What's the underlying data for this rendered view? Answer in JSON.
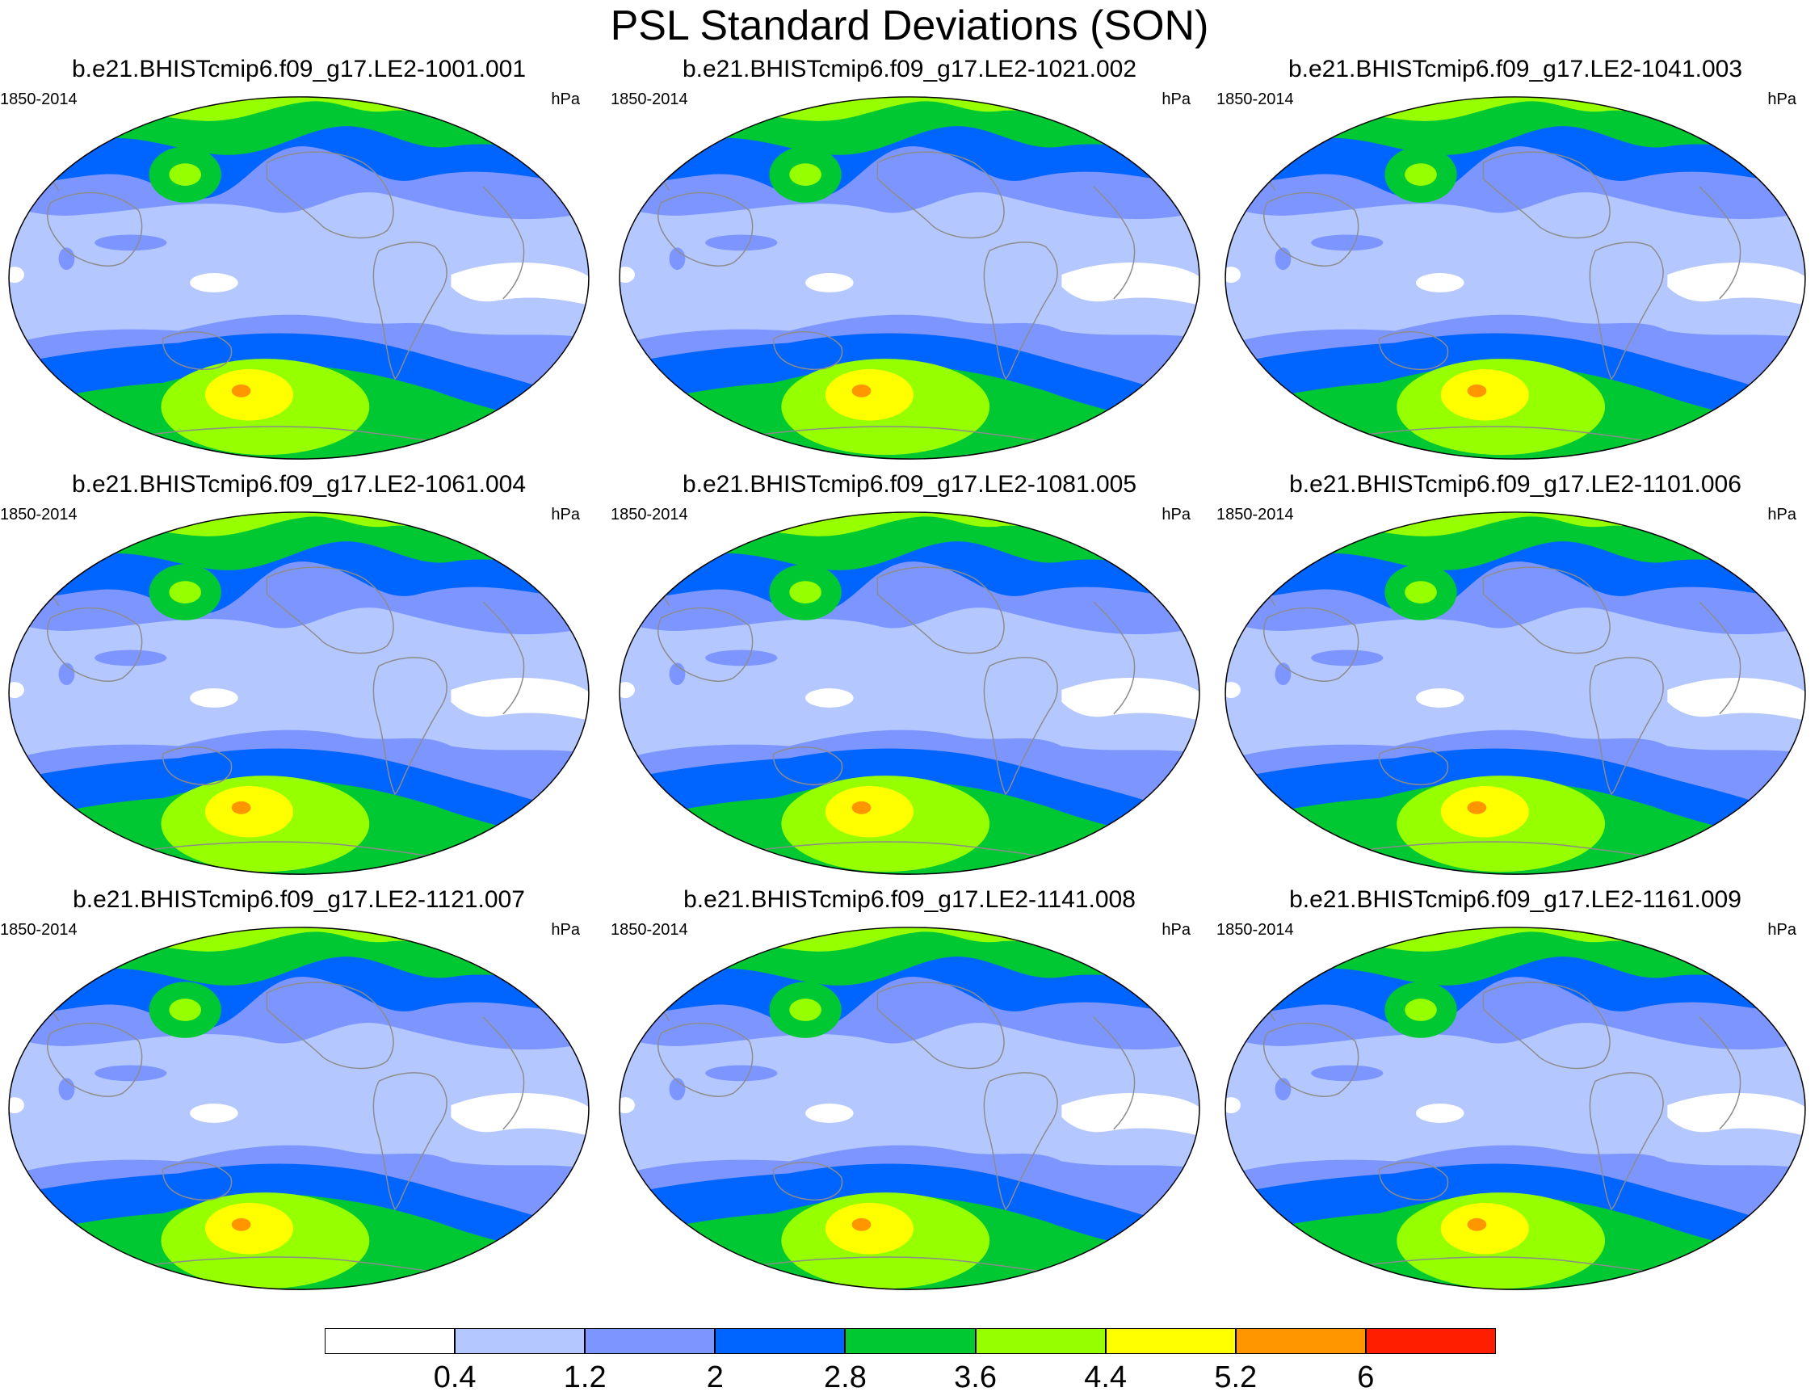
{
  "title": "PSL Standard Deviations (SON)",
  "period_label": "1850-2014",
  "units_label": "hPa",
  "colorbar": {
    "colors": [
      "#ffffff",
      "#b4c8ff",
      "#7d96ff",
      "#0064ff",
      "#00c832",
      "#96ff00",
      "#ffff00",
      "#ff9600",
      "#ff1e00"
    ],
    "labels": [
      "0.4",
      "1.2",
      "2",
      "2.8",
      "3.6",
      "4.4",
      "5.2",
      "6"
    ]
  },
  "colors": {
    "ocean_base": "#b4c8ff",
    "land_outline": "#8c8c8c",
    "background": "#ffffff"
  },
  "panels": [
    {
      "title": "b.e21.BHISTcmip6.f09_g17.LE2-1001.001"
    },
    {
      "title": "b.e21.BHISTcmip6.f09_g17.LE2-1021.002"
    },
    {
      "title": "b.e21.BHISTcmip6.f09_g17.LE2-1041.003"
    },
    {
      "title": "b.e21.BHISTcmip6.f09_g17.LE2-1061.004"
    },
    {
      "title": "b.e21.BHISTcmip6.f09_g17.LE2-1081.005"
    },
    {
      "title": "b.e21.BHISTcmip6.f09_g17.LE2-1101.006"
    },
    {
      "title": "b.e21.BHISTcmip6.f09_g17.LE2-1121.007"
    },
    {
      "title": "b.e21.BHISTcmip6.f09_g17.LE2-1141.008"
    },
    {
      "title": "b.e21.BHISTcmip6.f09_g17.LE2-1161.009"
    }
  ]
}
